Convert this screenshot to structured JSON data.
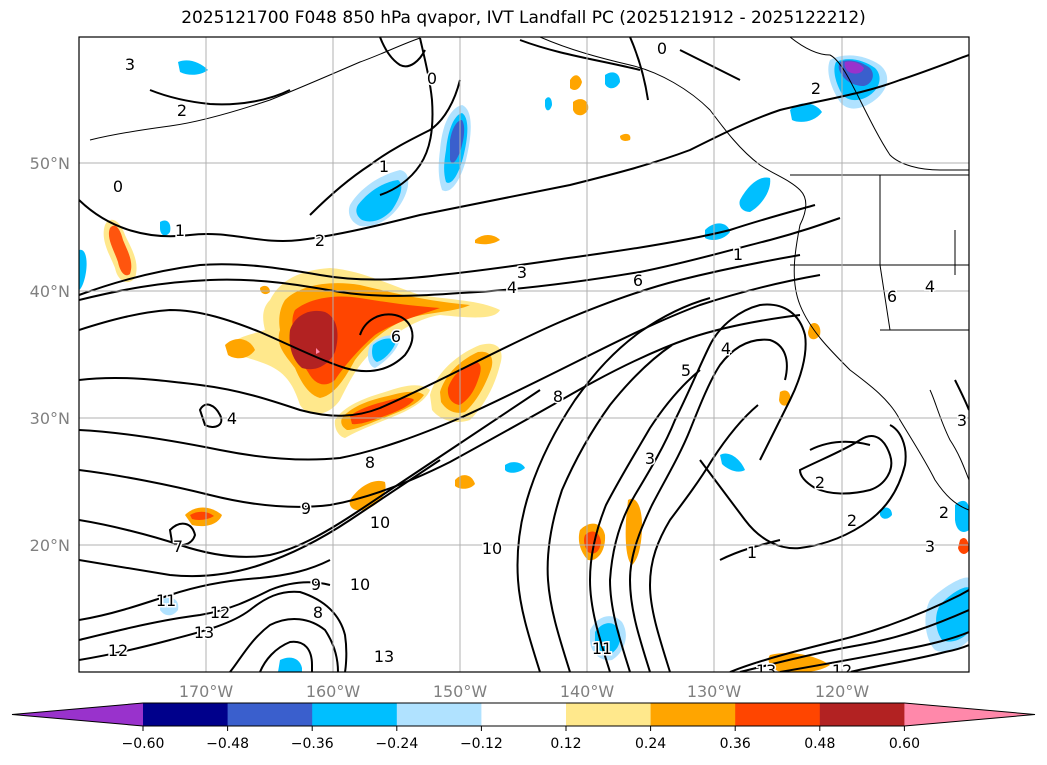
{
  "title": "2025121700 F048 850 hPa qvapor, IVT Landfall PC (2025121912 - 2025122212)",
  "map": {
    "lat_labels": [
      "50°N",
      "40°N",
      "30°N",
      "20°N"
    ],
    "lon_labels": [
      "170°W",
      "160°W",
      "150°W",
      "140°W",
      "130°W",
      "120°W"
    ],
    "contour_labels": [
      {
        "text": "3"
      },
      {
        "text": "2"
      },
      {
        "text": "0"
      },
      {
        "text": "0"
      },
      {
        "text": "0"
      },
      {
        "text": "2"
      },
      {
        "text": "1"
      },
      {
        "text": "1"
      },
      {
        "text": "2"
      },
      {
        "text": "3"
      },
      {
        "text": "4"
      },
      {
        "text": "6"
      },
      {
        "text": "1"
      },
      {
        "text": "6"
      },
      {
        "text": "4"
      },
      {
        "text": "6"
      },
      {
        "text": "4"
      },
      {
        "text": "5"
      },
      {
        "text": "4"
      },
      {
        "text": "8"
      },
      {
        "text": "3"
      },
      {
        "text": "8"
      },
      {
        "text": "9"
      },
      {
        "text": "10"
      },
      {
        "text": "7"
      },
      {
        "text": "10"
      },
      {
        "text": "9"
      },
      {
        "text": "10"
      },
      {
        "text": "8"
      },
      {
        "text": "11"
      },
      {
        "text": "12"
      },
      {
        "text": "13"
      },
      {
        "text": "12"
      },
      {
        "text": "13"
      },
      {
        "text": "11"
      },
      {
        "text": "2"
      },
      {
        "text": "2"
      },
      {
        "text": "1"
      },
      {
        "text": "2"
      },
      {
        "text": "3"
      },
      {
        "text": "3"
      },
      {
        "text": "13"
      },
      {
        "text": "12"
      }
    ]
  },
  "colorbar": {
    "ticks": [
      "−0.60",
      "−0.48",
      "−0.36",
      "−0.24",
      "−0.12",
      "0.12",
      "0.24",
      "0.36",
      "0.48",
      "0.60"
    ],
    "colors": [
      "#9932cc",
      "#00008b",
      "#3a5fcd",
      "#00bfff",
      "#b0e2ff",
      "#ffffff",
      "#ffe88c",
      "#ffa500",
      "#ff4500",
      "#b22222",
      "#ff88aa"
    ]
  }
}
